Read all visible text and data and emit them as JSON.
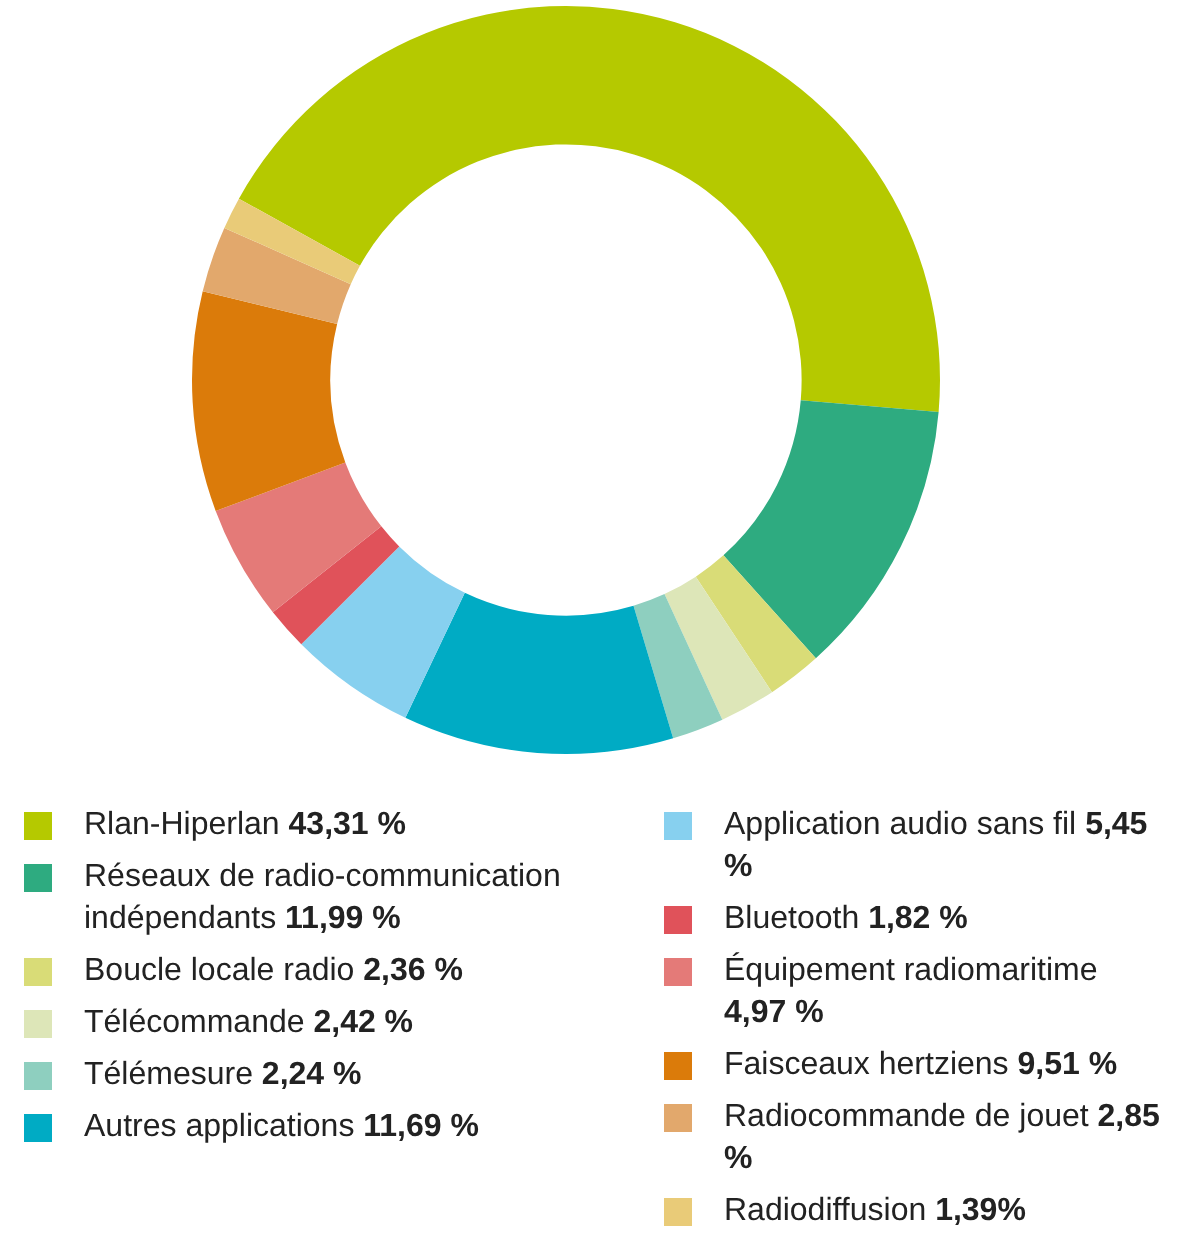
{
  "chart_data": {
    "type": "donut",
    "legend": "bottom",
    "categories": [
      "Rlan-Hiperlan",
      "Réseaux de radio-communication indépendants",
      "Boucle locale radio",
      "Télécommande",
      "Télémesure",
      "Autres applications",
      "Application audio sans fil",
      "Bluetooth",
      "Équipement radiomaritime",
      "Faisceaux hertziens",
      "Radiocommande de jouet",
      "Radiodiffusion"
    ],
    "values": [
      43.31,
      11.99,
      2.36,
      2.42,
      2.24,
      11.69,
      5.45,
      1.82,
      4.97,
      9.51,
      2.85,
      1.39
    ],
    "value_labels": [
      "43,31 %",
      "11,99 %",
      "2,36 %",
      "2,42 %",
      "2,24 %",
      "11,69 %",
      "5,45 %",
      "1,82 %",
      "4,97 %",
      "9,51 %",
      "2,85 %",
      "1,39%"
    ],
    "colors": [
      "#b5c900",
      "#2eab80",
      "#d9dc77",
      "#dde6b8",
      "#8ecfbf",
      "#00abc4",
      "#87d0ef",
      "#e0525a",
      "#e47a78",
      "#db7b0a",
      "#e2a86c",
      "#e9cb78"
    ]
  }
}
